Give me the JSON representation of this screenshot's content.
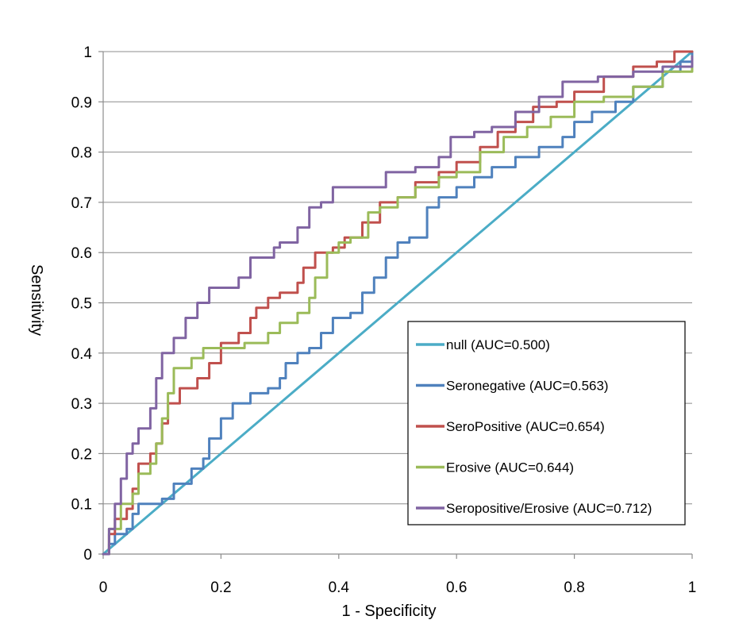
{
  "chart_data": {
    "type": "line",
    "title": "",
    "xlabel": "1 - Specificity",
    "ylabel": "Sensitivity",
    "xlim": [
      0,
      1
    ],
    "ylim": [
      0,
      1
    ],
    "xticks": [
      "0",
      "0.2",
      "0.4",
      "0.6",
      "0.8",
      "1"
    ],
    "yticks": [
      "0",
      "0.1",
      "0.2",
      "0.3",
      "0.4",
      "0.5",
      "0.6",
      "0.7",
      "0.8",
      "0.9",
      "1"
    ],
    "grid": "horizontal",
    "legend_position": "bottom-right",
    "series": [
      {
        "name": "null (AUC=0.500)",
        "color": "#4bacc6",
        "points": [
          [
            0,
            0
          ],
          [
            1,
            1
          ]
        ]
      },
      {
        "name": "Seronegative (AUC=0.563)",
        "color": "#4f81bd",
        "points": [
          [
            0,
            0
          ],
          [
            0.01,
            0.02
          ],
          [
            0.02,
            0.04
          ],
          [
            0.04,
            0.05
          ],
          [
            0.05,
            0.08
          ],
          [
            0.06,
            0.1
          ],
          [
            0.1,
            0.11
          ],
          [
            0.12,
            0.14
          ],
          [
            0.15,
            0.17
          ],
          [
            0.17,
            0.19
          ],
          [
            0.18,
            0.23
          ],
          [
            0.2,
            0.27
          ],
          [
            0.22,
            0.3
          ],
          [
            0.25,
            0.32
          ],
          [
            0.28,
            0.33
          ],
          [
            0.3,
            0.35
          ],
          [
            0.31,
            0.38
          ],
          [
            0.33,
            0.4
          ],
          [
            0.35,
            0.41
          ],
          [
            0.37,
            0.44
          ],
          [
            0.39,
            0.47
          ],
          [
            0.42,
            0.48
          ],
          [
            0.44,
            0.52
          ],
          [
            0.46,
            0.55
          ],
          [
            0.48,
            0.59
          ],
          [
            0.5,
            0.62
          ],
          [
            0.52,
            0.63
          ],
          [
            0.55,
            0.69
          ],
          [
            0.57,
            0.71
          ],
          [
            0.6,
            0.73
          ],
          [
            0.63,
            0.75
          ],
          [
            0.66,
            0.77
          ],
          [
            0.7,
            0.79
          ],
          [
            0.74,
            0.81
          ],
          [
            0.78,
            0.83
          ],
          [
            0.8,
            0.86
          ],
          [
            0.83,
            0.88
          ],
          [
            0.87,
            0.9
          ],
          [
            0.9,
            0.93
          ],
          [
            0.95,
            0.96
          ],
          [
            0.98,
            0.98
          ],
          [
            1,
            1
          ]
        ]
      },
      {
        "name": "SeroPositive (AUC=0.654)",
        "color": "#c0504d",
        "points": [
          [
            0,
            0
          ],
          [
            0.01,
            0.04
          ],
          [
            0.02,
            0.07
          ],
          [
            0.04,
            0.09
          ],
          [
            0.05,
            0.13
          ],
          [
            0.06,
            0.18
          ],
          [
            0.08,
            0.2
          ],
          [
            0.09,
            0.22
          ],
          [
            0.1,
            0.26
          ],
          [
            0.11,
            0.3
          ],
          [
            0.13,
            0.33
          ],
          [
            0.16,
            0.35
          ],
          [
            0.18,
            0.38
          ],
          [
            0.2,
            0.42
          ],
          [
            0.23,
            0.44
          ],
          [
            0.25,
            0.47
          ],
          [
            0.26,
            0.49
          ],
          [
            0.28,
            0.51
          ],
          [
            0.3,
            0.52
          ],
          [
            0.33,
            0.54
          ],
          [
            0.34,
            0.57
          ],
          [
            0.36,
            0.6
          ],
          [
            0.39,
            0.61
          ],
          [
            0.41,
            0.63
          ],
          [
            0.44,
            0.66
          ],
          [
            0.47,
            0.7
          ],
          [
            0.5,
            0.71
          ],
          [
            0.53,
            0.74
          ],
          [
            0.57,
            0.76
          ],
          [
            0.6,
            0.78
          ],
          [
            0.64,
            0.81
          ],
          [
            0.67,
            0.84
          ],
          [
            0.7,
            0.86
          ],
          [
            0.73,
            0.89
          ],
          [
            0.77,
            0.9
          ],
          [
            0.8,
            0.92
          ],
          [
            0.85,
            0.95
          ],
          [
            0.9,
            0.97
          ],
          [
            0.94,
            0.98
          ],
          [
            0.97,
            1
          ],
          [
            1,
            1
          ]
        ]
      },
      {
        "name": "Erosive (AUC=0.644)",
        "color": "#9bbb59",
        "points": [
          [
            0,
            0
          ],
          [
            0.01,
            0.05
          ],
          [
            0.03,
            0.1
          ],
          [
            0.05,
            0.12
          ],
          [
            0.06,
            0.16
          ],
          [
            0.08,
            0.18
          ],
          [
            0.09,
            0.22
          ],
          [
            0.1,
            0.27
          ],
          [
            0.11,
            0.32
          ],
          [
            0.12,
            0.37
          ],
          [
            0.15,
            0.39
          ],
          [
            0.17,
            0.41
          ],
          [
            0.21,
            0.41
          ],
          [
            0.24,
            0.42
          ],
          [
            0.27,
            0.42
          ],
          [
            0.28,
            0.44
          ],
          [
            0.3,
            0.46
          ],
          [
            0.33,
            0.48
          ],
          [
            0.35,
            0.51
          ],
          [
            0.36,
            0.55
          ],
          [
            0.38,
            0.6
          ],
          [
            0.4,
            0.62
          ],
          [
            0.42,
            0.63
          ],
          [
            0.45,
            0.68
          ],
          [
            0.47,
            0.69
          ],
          [
            0.5,
            0.71
          ],
          [
            0.53,
            0.73
          ],
          [
            0.57,
            0.75
          ],
          [
            0.6,
            0.76
          ],
          [
            0.64,
            0.8
          ],
          [
            0.68,
            0.83
          ],
          [
            0.72,
            0.85
          ],
          [
            0.76,
            0.87
          ],
          [
            0.8,
            0.9
          ],
          [
            0.85,
            0.91
          ],
          [
            0.9,
            0.93
          ],
          [
            0.95,
            0.96
          ],
          [
            1,
            0.99
          ]
        ]
      },
      {
        "name": "Seropositive/Erosive (AUC=0.712)",
        "color": "#8064a2",
        "points": [
          [
            0,
            0
          ],
          [
            0.01,
            0.05
          ],
          [
            0.02,
            0.1
          ],
          [
            0.03,
            0.15
          ],
          [
            0.04,
            0.2
          ],
          [
            0.05,
            0.22
          ],
          [
            0.06,
            0.25
          ],
          [
            0.08,
            0.29
          ],
          [
            0.09,
            0.35
          ],
          [
            0.1,
            0.4
          ],
          [
            0.12,
            0.43
          ],
          [
            0.14,
            0.47
          ],
          [
            0.16,
            0.5
          ],
          [
            0.18,
            0.53
          ],
          [
            0.2,
            0.53
          ],
          [
            0.23,
            0.55
          ],
          [
            0.25,
            0.59
          ],
          [
            0.29,
            0.61
          ],
          [
            0.3,
            0.62
          ],
          [
            0.33,
            0.65
          ],
          [
            0.35,
            0.69
          ],
          [
            0.37,
            0.7
          ],
          [
            0.39,
            0.73
          ],
          [
            0.44,
            0.73
          ],
          [
            0.48,
            0.76
          ],
          [
            0.53,
            0.77
          ],
          [
            0.57,
            0.79
          ],
          [
            0.59,
            0.83
          ],
          [
            0.63,
            0.84
          ],
          [
            0.66,
            0.85
          ],
          [
            0.7,
            0.88
          ],
          [
            0.74,
            0.91
          ],
          [
            0.78,
            0.94
          ],
          [
            0.84,
            0.95
          ],
          [
            0.9,
            0.96
          ],
          [
            0.95,
            0.97
          ],
          [
            1,
            0.99
          ]
        ]
      }
    ]
  }
}
